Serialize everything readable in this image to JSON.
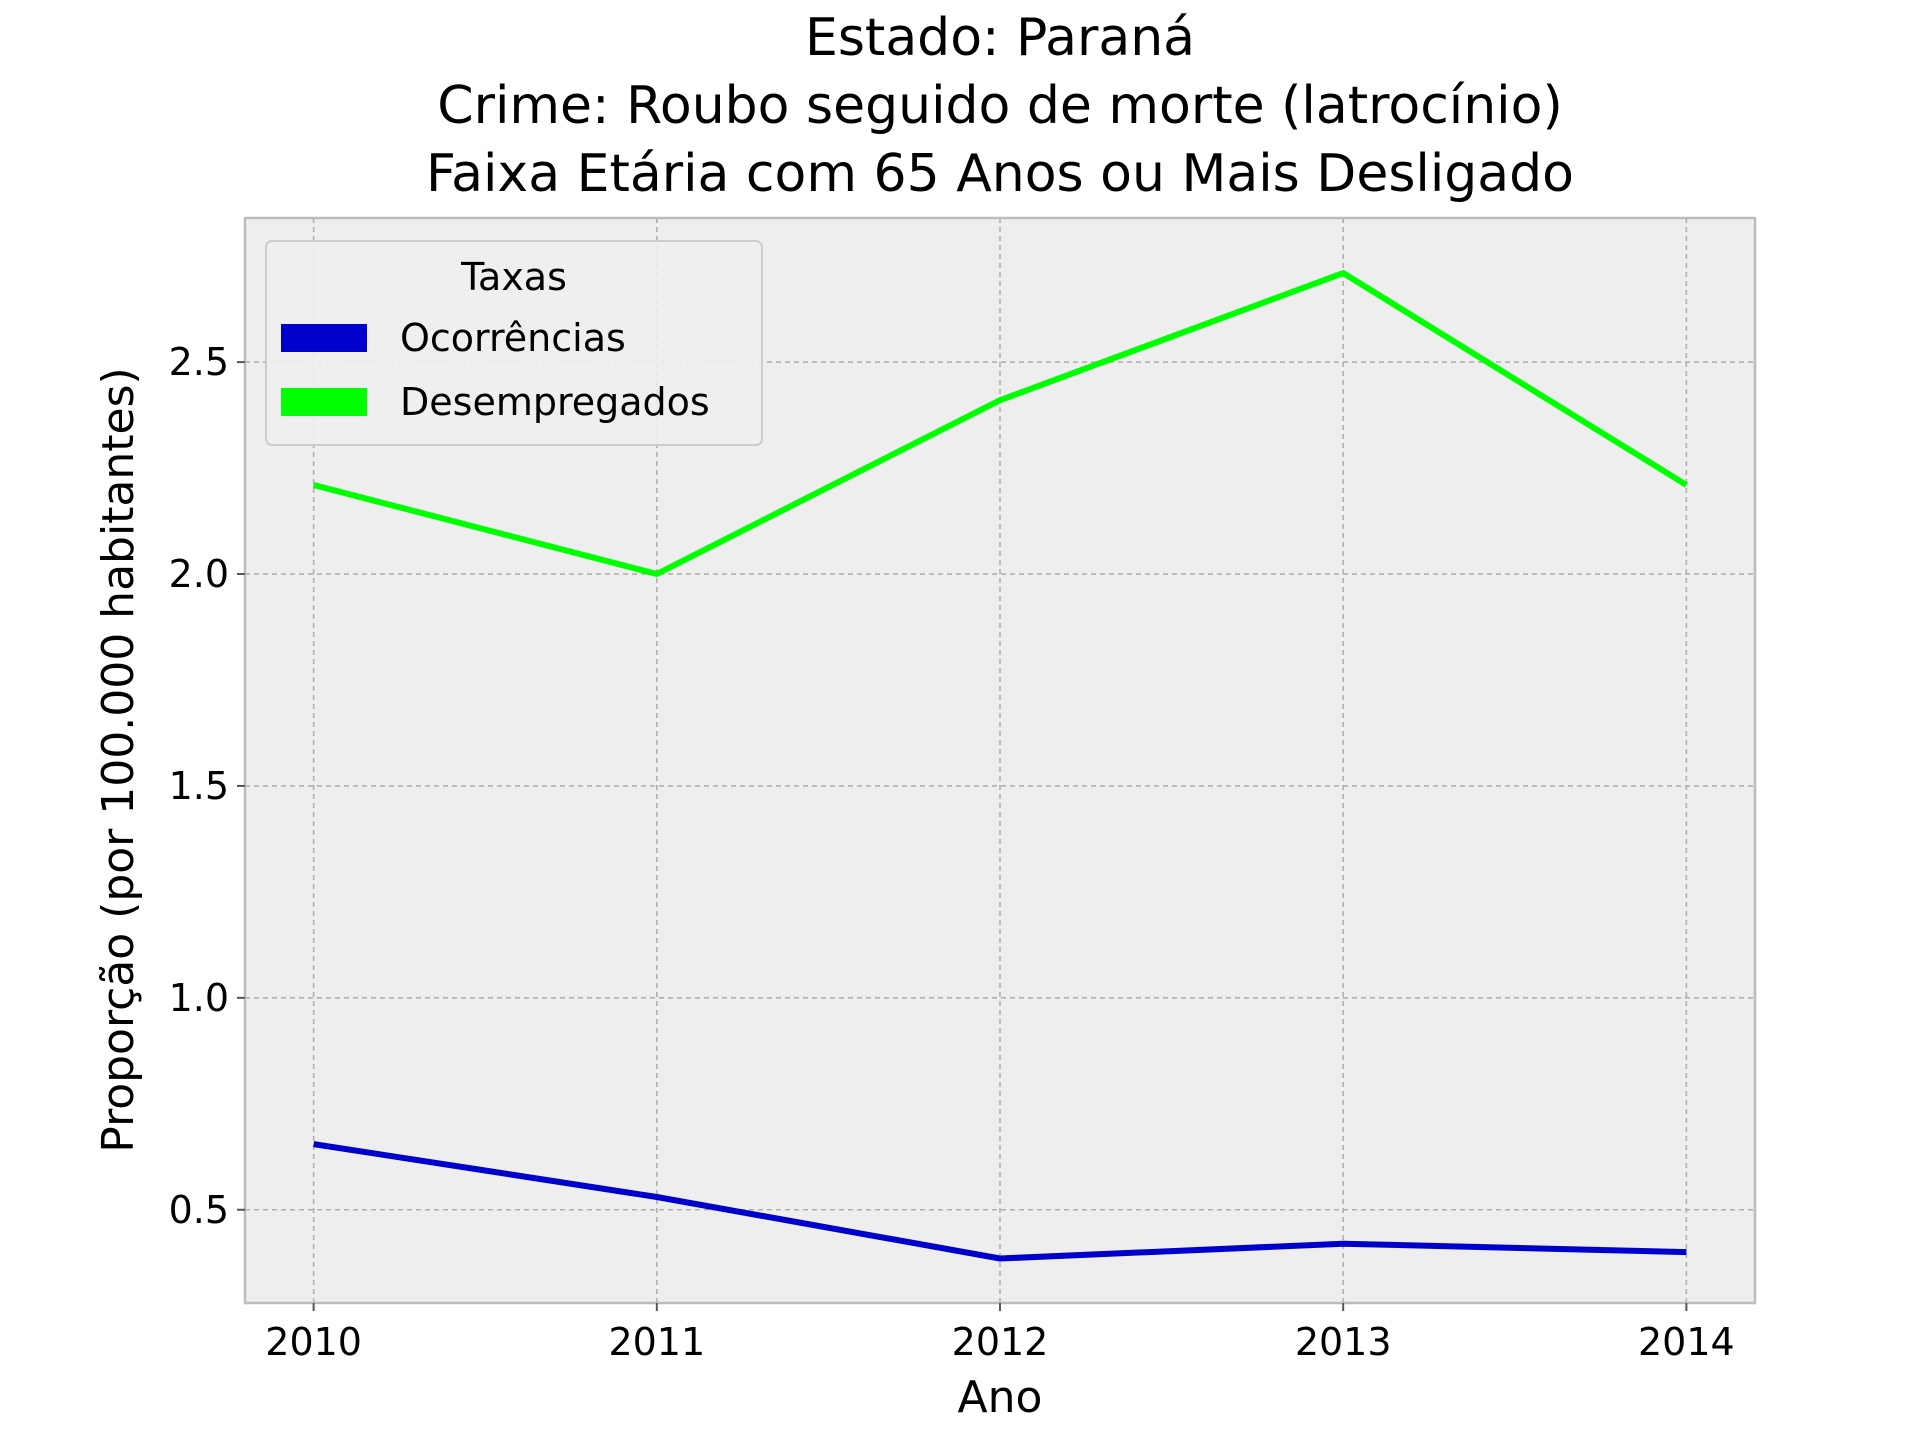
{
  "chart_data": {
    "type": "line",
    "title_lines": [
      "Estado: Paraná",
      "Crime: Roubo seguido de morte (latrocínio)",
      "Faixa Etária com 65 Anos ou Mais   Desligado"
    ],
    "xlabel": "Ano",
    "ylabel": "Proporção (por 100.000 habitantes)",
    "x": [
      2010,
      2011,
      2012,
      2013,
      2014
    ],
    "x_tick_labels": [
      "2010",
      "2011",
      "2012",
      "2013",
      "2014"
    ],
    "y_ticks": [
      0.5,
      1.0,
      1.5,
      2.0,
      2.5
    ],
    "y_tick_labels": [
      "0.5",
      "1.0",
      "1.5",
      "2.0",
      "2.5"
    ],
    "xlim": [
      2009.8,
      2014.2
    ],
    "ylim": [
      0.28,
      2.84
    ],
    "grid": true,
    "legend": {
      "title": "Taxas",
      "placement": "upper-left"
    },
    "series": [
      {
        "name": "Ocorrências",
        "color": "#0000cc",
        "values": [
          0.655,
          0.53,
          0.385,
          0.42,
          0.4
        ]
      },
      {
        "name": "Desempregados",
        "color": "#00ff00",
        "values": [
          2.21,
          2.0,
          2.41,
          2.71,
          2.21
        ]
      }
    ]
  }
}
